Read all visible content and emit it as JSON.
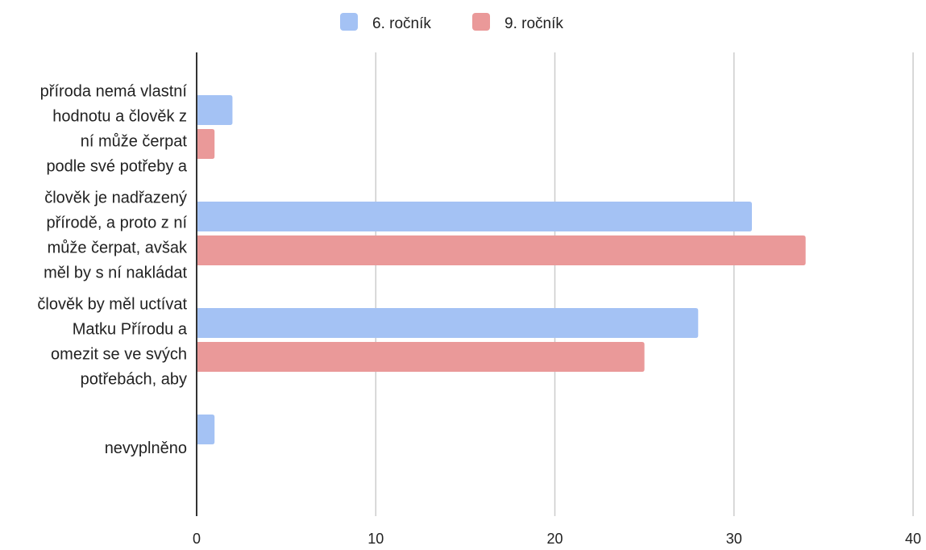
{
  "chart_data": {
    "type": "bar",
    "orientation": "horizontal",
    "title": "",
    "xlabel": "",
    "ylabel": "",
    "xlim": [
      0,
      40
    ],
    "x_ticks": [
      0,
      10,
      20,
      30,
      40
    ],
    "grid": true,
    "legend_position": "top-center",
    "categories": [
      "příroda nemá vlastní hodnotu a člověk z ní může čerpat podle své potřeby a",
      "člověk je nadřazený přírodě, a proto z ní může čerpat, avšak měl by s ní nakládat",
      "člověk by měl uctívat Matku Přírodu a omezit se ve svých potřebách, aby",
      "nevyplněno"
    ],
    "category_lines": [
      [
        "příroda nemá vlastní",
        "hodnotu a člověk z",
        "ní může čerpat",
        "podle své potřeby a"
      ],
      [
        "člověk je nadřazený",
        "přírodě, a proto z ní",
        "může čerpat, avšak",
        "měl by s ní nakládat"
      ],
      [
        "člověk by měl uctívat",
        "Matku Přírodu a",
        "omezit se ve svých",
        "potřebách, aby"
      ],
      [
        "nevyplněno"
      ]
    ],
    "series": [
      {
        "name": "6. ročník",
        "color": "#a4c2f4",
        "values": [
          2,
          31,
          28,
          1
        ]
      },
      {
        "name": "9. ročník",
        "color": "#ea9999",
        "values": [
          1,
          34,
          25,
          0
        ]
      }
    ]
  }
}
